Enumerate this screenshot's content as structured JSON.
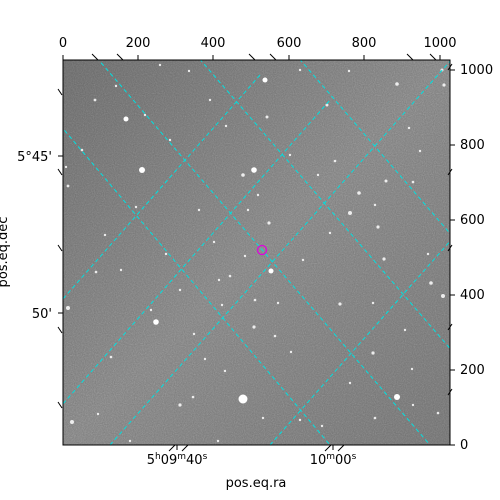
{
  "image": {
    "description_type": "astronomical-field",
    "top_axis_ticks": [
      "0",
      "200",
      "400",
      "600",
      "800",
      "1000"
    ],
    "right_axis_ticks": [
      "0",
      "200",
      "400",
      "600",
      "800",
      "1000"
    ],
    "left_axis_ticks": [
      "5°45'",
      "50'"
    ],
    "bottom_axis_ticks": [
      {
        "base": "5",
        "h": "h",
        "m_val": "09",
        "m": "m",
        "s_val": "40",
        "s": "s"
      },
      {
        "base": "10",
        "m": "m",
        "s_val": "00",
        "s": "s"
      }
    ],
    "xlabel": "pos.eq.ra",
    "ylabel": "pos.eq.dec",
    "colors": {
      "grid": "#00e0e0",
      "marker": "#e000e0",
      "background": "#7a7a7a"
    }
  }
}
